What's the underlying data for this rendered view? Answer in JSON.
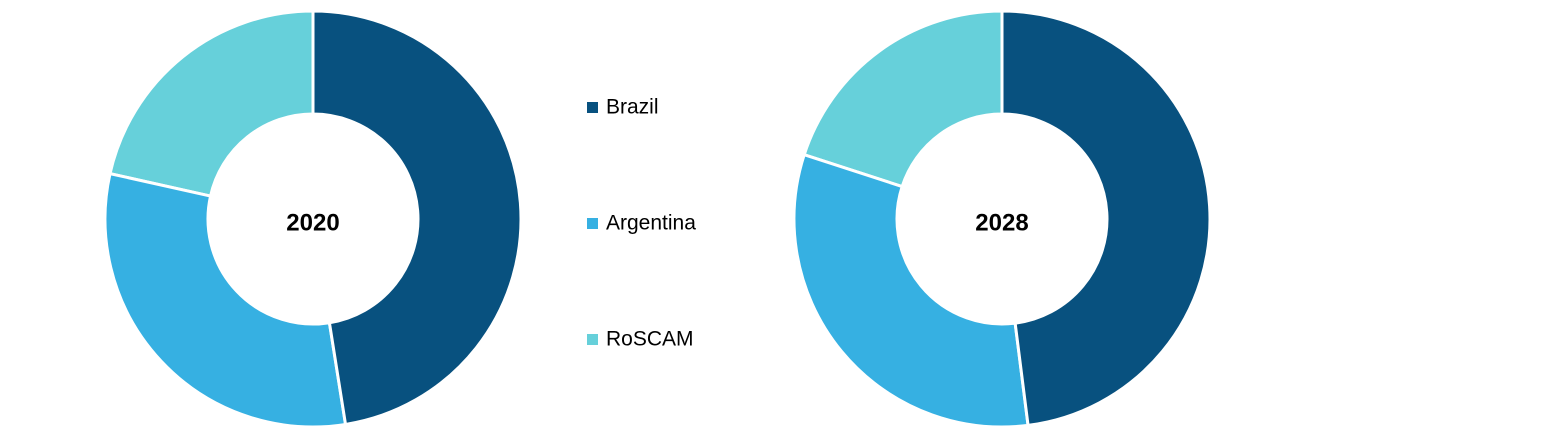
{
  "chart_data": [
    {
      "type": "pie",
      "title": "2020",
      "categories": [
        "Brazil",
        "Argentina",
        "RoSCAM"
      ],
      "colors": [
        "#08517f",
        "#36b0e2",
        "#66d0da"
      ],
      "values": [
        47.5,
        31,
        21.5
      ]
    },
    {
      "type": "pie",
      "title": "2028",
      "values": [
        48,
        32,
        20
      ]
    }
  ]
}
